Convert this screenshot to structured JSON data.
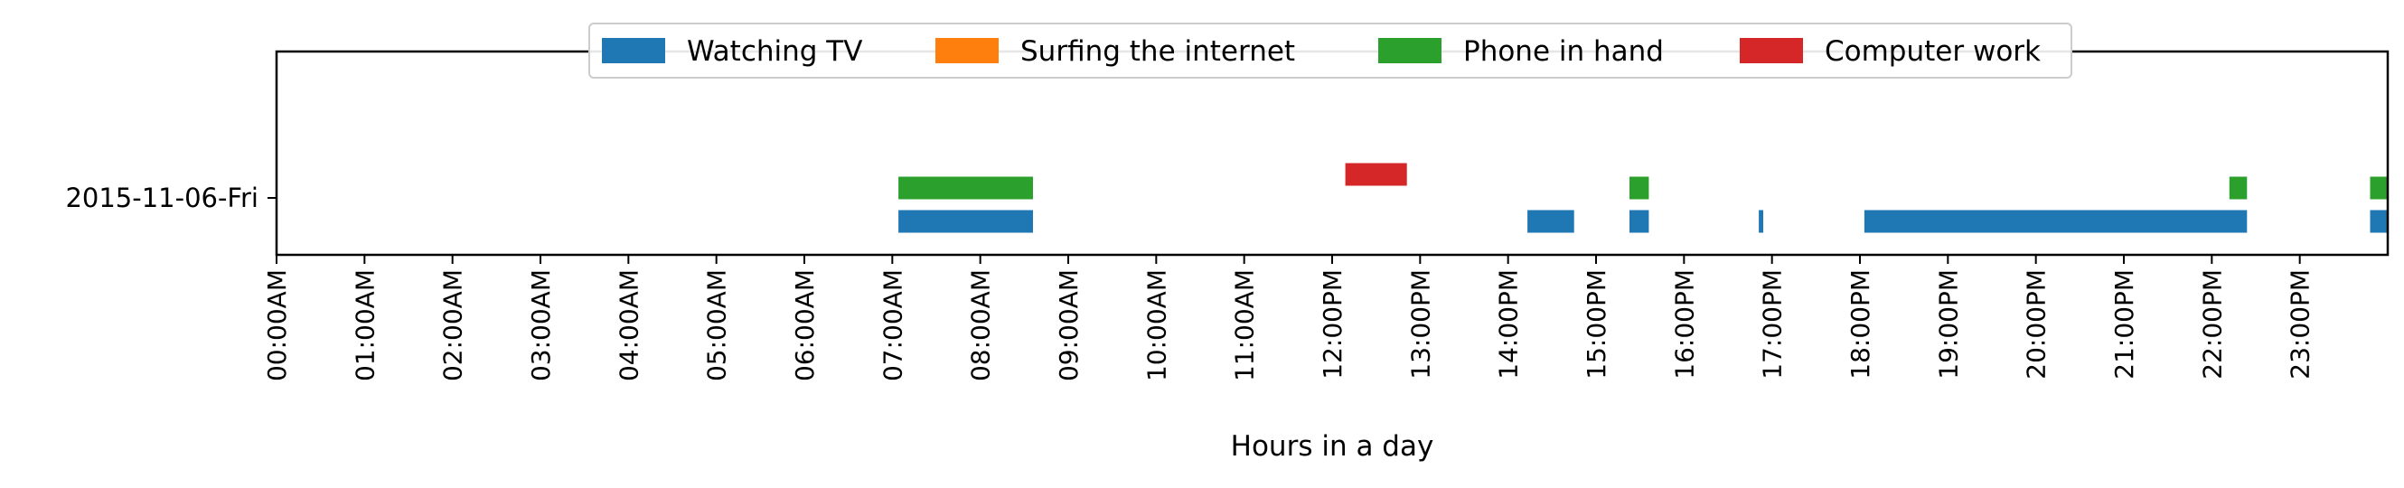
{
  "chart_data": {
    "type": "timeline",
    "xlabel": "Hours in a day",
    "ylabel": "",
    "xlim": [
      0,
      24
    ],
    "x_ticks": [
      "00:00AM",
      "01:00AM",
      "02:00AM",
      "03:00AM",
      "04:00AM",
      "05:00AM",
      "06:00AM",
      "07:00AM",
      "08:00AM",
      "09:00AM",
      "10:00AM",
      "11:00AM",
      "12:00PM",
      "13:00PM",
      "14:00PM",
      "15:00PM",
      "16:00PM",
      "17:00PM",
      "18:00PM",
      "19:00PM",
      "20:00PM",
      "21:00PM",
      "22:00PM",
      "23:00PM"
    ],
    "categories": [
      "2015-11-06-Fri"
    ],
    "grid": false,
    "legend_position": "top-center",
    "series": [
      {
        "name": "Watching TV",
        "color": "#1f77b4",
        "intervals": [
          [
            7.07,
            8.6
          ],
          [
            14.22,
            14.75
          ],
          [
            15.38,
            15.6
          ],
          [
            16.85,
            16.9
          ],
          [
            18.05,
            22.4
          ],
          [
            23.8,
            24.0
          ]
        ]
      },
      {
        "name": "Surfing the internet",
        "color": "#ff7f0e",
        "intervals": []
      },
      {
        "name": "Phone in hand",
        "color": "#2ca02c",
        "intervals": [
          [
            7.07,
            8.6
          ],
          [
            15.38,
            15.6
          ],
          [
            22.2,
            22.4
          ],
          [
            23.8,
            24.0
          ]
        ]
      },
      {
        "name": "Computer work",
        "color": "#d62728",
        "intervals": [
          [
            12.15,
            12.85
          ]
        ]
      }
    ]
  }
}
